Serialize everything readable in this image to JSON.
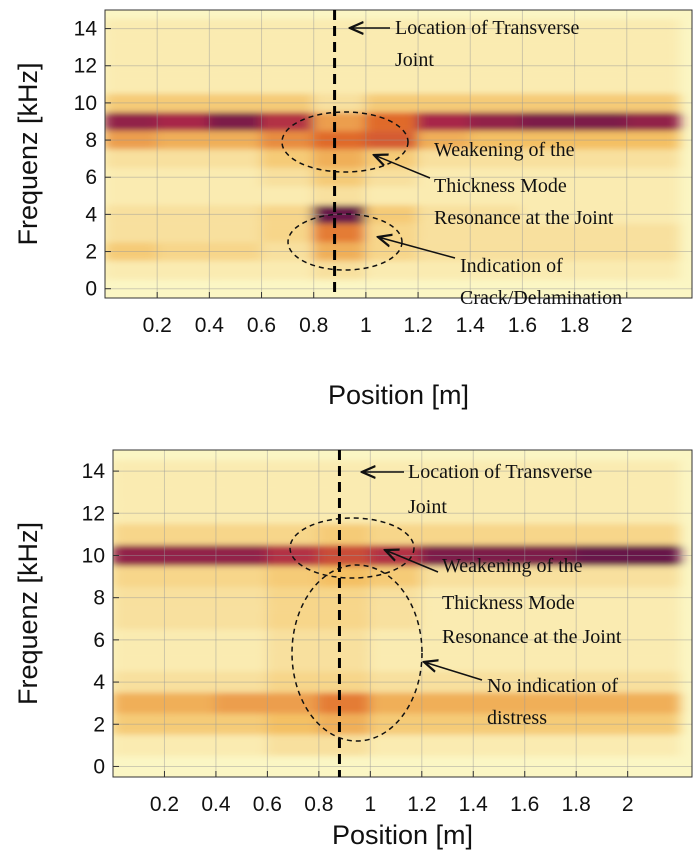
{
  "chart_data": [
    {
      "type": "heatmap",
      "xlabel": "Position [m]",
      "ylabel": "Frequenz [kHz]",
      "xlim": [
        0,
        2.25
      ],
      "ylim": [
        -0.5,
        15
      ],
      "xticks": [
        0.2,
        0.4,
        0.6,
        0.8,
        1,
        1.2,
        1.4,
        1.6,
        1.8,
        2
      ],
      "yticks": [
        0,
        2,
        4,
        6,
        8,
        10,
        12,
        14
      ],
      "grid": true,
      "colormap": [
        "#fbf6c4",
        "#f4c064",
        "#e06a2a",
        "#a8254a",
        "#3c0e4a"
      ],
      "joint_position": 0.88,
      "x": [
        0.1,
        0.3,
        0.5,
        0.7,
        0.9,
        1.1,
        1.3,
        1.5,
        1.7,
        1.9,
        2.1
      ],
      "y": [
        1,
        2,
        3,
        4,
        5,
        6,
        7,
        8,
        9,
        10,
        11,
        12,
        13,
        14
      ],
      "z": [
        [
          0.05,
          0.05,
          0.05,
          0.05,
          0.1,
          0.05,
          0.05,
          0.05,
          0.05,
          0.05,
          0.05
        ],
        [
          0.2,
          0.15,
          0.15,
          0.1,
          0.3,
          0.15,
          0.1,
          0.1,
          0.1,
          0.1,
          0.1
        ],
        [
          0.1,
          0.1,
          0.1,
          0.15,
          0.45,
          0.15,
          0.1,
          0.1,
          0.1,
          0.1,
          0.1
        ],
        [
          0.1,
          0.1,
          0.1,
          0.15,
          0.9,
          0.2,
          0.1,
          0.1,
          0.05,
          0.05,
          0.05
        ],
        [
          0.05,
          0.05,
          0.05,
          0.05,
          0.1,
          0.05,
          0.05,
          0.05,
          0.05,
          0.05,
          0.05
        ],
        [
          0.05,
          0.05,
          0.05,
          0.1,
          0.2,
          0.1,
          0.05,
          0.05,
          0.05,
          0.05,
          0.05
        ],
        [
          0.1,
          0.1,
          0.1,
          0.2,
          0.3,
          0.2,
          0.1,
          0.1,
          0.1,
          0.1,
          0.1
        ],
        [
          0.35,
          0.3,
          0.3,
          0.4,
          0.5,
          0.55,
          0.3,
          0.25,
          0.25,
          0.25,
          0.25
        ],
        [
          0.8,
          0.75,
          0.85,
          0.7,
          0.35,
          0.5,
          0.75,
          0.8,
          0.85,
          0.85,
          0.8
        ],
        [
          0.2,
          0.2,
          0.2,
          0.2,
          0.1,
          0.2,
          0.2,
          0.2,
          0.2,
          0.2,
          0.2
        ],
        [
          0.05,
          0.05,
          0.05,
          0.05,
          0.05,
          0.05,
          0.05,
          0.05,
          0.05,
          0.05,
          0.05
        ],
        [
          0.05,
          0.05,
          0.05,
          0.05,
          0.05,
          0.05,
          0.05,
          0.05,
          0.05,
          0.05,
          0.05
        ],
        [
          0.05,
          0.05,
          0.05,
          0.05,
          0.05,
          0.05,
          0.05,
          0.05,
          0.05,
          0.05,
          0.05
        ],
        [
          0.05,
          0.05,
          0.05,
          0.05,
          0.05,
          0.05,
          0.05,
          0.05,
          0.05,
          0.05,
          0.05
        ]
      ],
      "annotations": [
        {
          "lines": [
            "Location of Transverse",
            "Joint"
          ]
        },
        {
          "lines": [
            "Weakening of the",
            "Thickness Mode",
            "Resonance at the Joint"
          ]
        },
        {
          "lines": [
            "Indication of",
            "Crack/Delamination"
          ]
        }
      ]
    },
    {
      "type": "heatmap",
      "xlabel": "Position [m]",
      "ylabel": "Frequenz [kHz]",
      "xlim": [
        0,
        2.25
      ],
      "ylim": [
        -0.5,
        15
      ],
      "xticks": [
        0.2,
        0.4,
        0.6,
        0.8,
        1,
        1.2,
        1.4,
        1.6,
        1.8,
        2
      ],
      "yticks": [
        0,
        2,
        4,
        6,
        8,
        10,
        12,
        14
      ],
      "grid": true,
      "colormap": [
        "#fbf6c4",
        "#f4c064",
        "#e06a2a",
        "#a8254a",
        "#3c0e4a"
      ],
      "joint_position": 0.88,
      "x": [
        0.1,
        0.3,
        0.5,
        0.7,
        0.9,
        1.1,
        1.3,
        1.5,
        1.7,
        1.9,
        2.1
      ],
      "y": [
        1,
        2,
        3,
        4,
        5,
        6,
        7,
        8,
        9,
        10,
        11,
        12,
        13,
        14
      ],
      "z": [
        [
          0.05,
          0.05,
          0.05,
          0.1,
          0.1,
          0.05,
          0.05,
          0.05,
          0.05,
          0.05,
          0.05
        ],
        [
          0.2,
          0.2,
          0.2,
          0.25,
          0.3,
          0.2,
          0.2,
          0.2,
          0.2,
          0.2,
          0.2
        ],
        [
          0.3,
          0.3,
          0.35,
          0.35,
          0.45,
          0.3,
          0.3,
          0.3,
          0.3,
          0.3,
          0.3
        ],
        [
          0.1,
          0.1,
          0.1,
          0.15,
          0.15,
          0.1,
          0.1,
          0.1,
          0.1,
          0.1,
          0.1
        ],
        [
          0.05,
          0.05,
          0.05,
          0.1,
          0.1,
          0.05,
          0.05,
          0.05,
          0.05,
          0.05,
          0.05
        ],
        [
          0.05,
          0.05,
          0.05,
          0.1,
          0.1,
          0.05,
          0.05,
          0.05,
          0.05,
          0.05,
          0.05
        ],
        [
          0.1,
          0.1,
          0.1,
          0.15,
          0.15,
          0.1,
          0.05,
          0.05,
          0.05,
          0.05,
          0.05
        ],
        [
          0.1,
          0.1,
          0.1,
          0.15,
          0.15,
          0.1,
          0.05,
          0.05,
          0.05,
          0.05,
          0.05
        ],
        [
          0.15,
          0.15,
          0.15,
          0.2,
          0.25,
          0.2,
          0.1,
          0.1,
          0.1,
          0.1,
          0.1
        ],
        [
          0.8,
          0.8,
          0.8,
          0.7,
          0.6,
          0.7,
          0.85,
          0.85,
          0.85,
          0.9,
          0.9
        ],
        [
          0.15,
          0.15,
          0.15,
          0.15,
          0.2,
          0.15,
          0.15,
          0.15,
          0.15,
          0.15,
          0.15
        ],
        [
          0.05,
          0.05,
          0.05,
          0.05,
          0.05,
          0.05,
          0.05,
          0.05,
          0.05,
          0.05,
          0.05
        ],
        [
          0.05,
          0.05,
          0.05,
          0.05,
          0.05,
          0.05,
          0.05,
          0.05,
          0.05,
          0.05,
          0.05
        ],
        [
          0.05,
          0.05,
          0.05,
          0.05,
          0.05,
          0.05,
          0.05,
          0.05,
          0.05,
          0.05,
          0.05
        ]
      ],
      "annotations": [
        {
          "lines": [
            "Location of Transverse",
            "Joint"
          ]
        },
        {
          "lines": [
            "Weakening of the",
            "Thickness Mode",
            "Resonance at the Joint"
          ]
        },
        {
          "lines": [
            "No indication of",
            "distress"
          ]
        }
      ]
    }
  ]
}
